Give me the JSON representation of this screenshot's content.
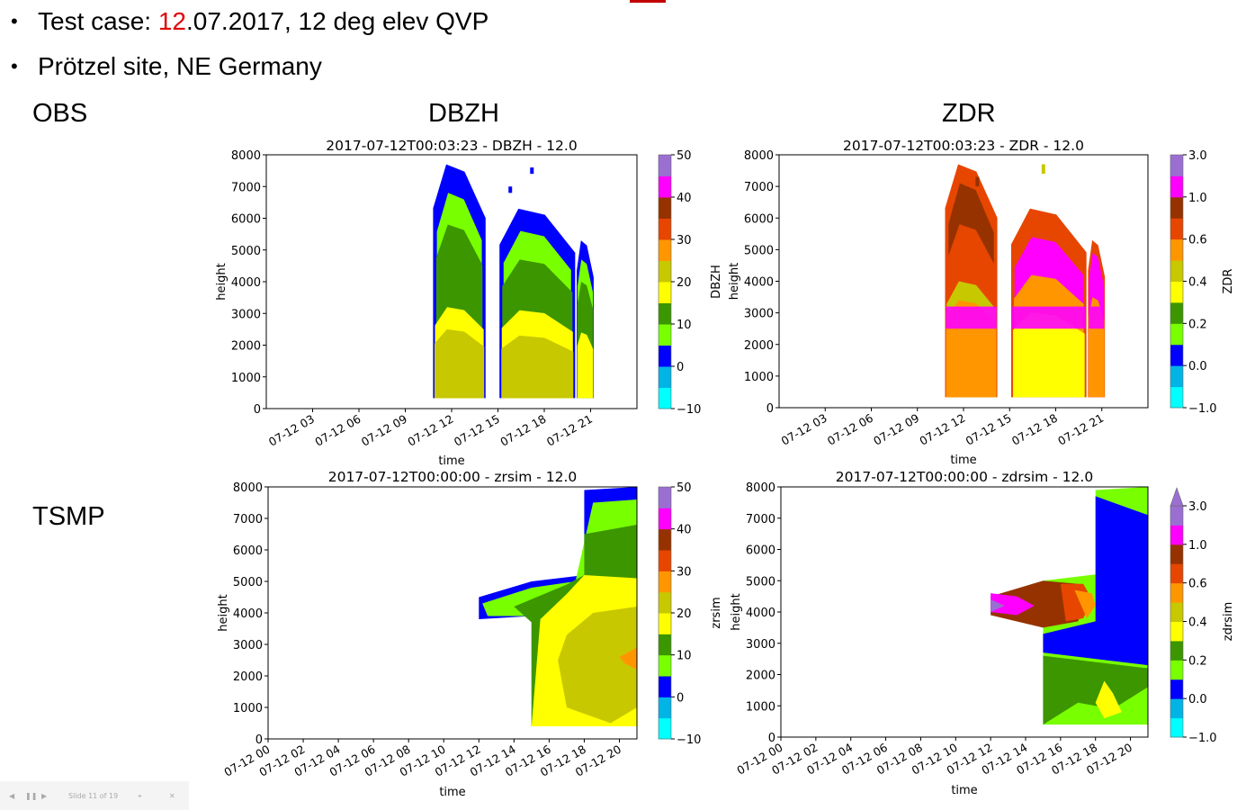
{
  "slide": {
    "bullet1": {
      "prefix": "Test case: ",
      "highlight": "12",
      "suffix": ".07.2017, 12 deg elev QVP"
    },
    "bullet2": "Prötzel site, NE Germany",
    "row_labels": {
      "obs": "OBS",
      "tsmp": "TSMP"
    },
    "col_labels": {
      "dbzh": "DBZH",
      "zdr": "ZDR"
    },
    "controls": {
      "prev": "◀",
      "pause": "❚❚",
      "next": "▶",
      "counter": "Slide 11 of 19",
      "focus": "⌖",
      "close": "✕"
    }
  },
  "colors": {
    "dbz_scale": [
      "#00ffff",
      "#00b4e6",
      "#0000ff",
      "#78ff00",
      "#3c9600",
      "#ffff00",
      "#c8c800",
      "#ff9600",
      "#e64600",
      "#963200",
      "#ff00ff",
      "#9b6fd2"
    ],
    "zdr_scale": [
      "#00ffff",
      "#00b4e6",
      "#0000ff",
      "#78ff00",
      "#3c9600",
      "#ffff00",
      "#c8c800",
      "#ff9600",
      "#e64600",
      "#963200",
      "#ff00ff",
      "#9b6fd2"
    ],
    "accent": "#e00000"
  },
  "chart_data": [
    {
      "type": "heatmap",
      "id": "obs-dbzh",
      "title": "2017-07-12T00:03:23 - DBZH  - 12.0",
      "xlabel": "time",
      "ylabel": "height",
      "colorbar_label": "DBZH",
      "ylim": [
        0,
        8000
      ],
      "xlim": [
        "07-12 00",
        "07-12 24"
      ],
      "yticks": [
        0,
        1000,
        2000,
        3000,
        4000,
        5000,
        6000,
        7000,
        8000
      ],
      "xticks": [
        "07-12 03",
        "07-12 06",
        "07-12 09",
        "07-12 12",
        "07-12 15",
        "07-12 18",
        "07-12 21"
      ],
      "colorbar_ticks": [
        -10,
        0,
        10,
        20,
        30,
        40,
        50
      ],
      "blobs": [
        {
          "x0": 10.8,
          "x1": 14.2,
          "top": 7700,
          "layers": [
            [
              0.3,
              7700,
              2
            ],
            [
              0.24,
              6800,
              3
            ],
            [
              0.2,
              5800,
              4
            ],
            [
              0.12,
              3200,
              5
            ],
            [
              0.09,
              2500,
              6
            ]
          ]
        },
        {
          "x0": 15.1,
          "x1": 20.0,
          "top": 6300,
          "layers": [
            [
              0.25,
              6300,
              2
            ],
            [
              0.18,
              5600,
              3
            ],
            [
              0.12,
              4700,
              4
            ],
            [
              0.1,
              3100,
              5
            ],
            [
              0.08,
              2300,
              6
            ]
          ]
        },
        {
          "x0": 20.1,
          "x1": 21.2,
          "top": 5300,
          "layers": [
            [
              0.2,
              5300,
              2
            ],
            [
              0.15,
              4700,
              3
            ],
            [
              0.12,
              4000,
              4
            ],
            [
              0.1,
              2400,
              5
            ]
          ]
        }
      ],
      "sparse": [
        [
          12.9,
          7100,
          7300,
          2
        ],
        [
          17.2,
          7400,
          7600,
          2
        ],
        [
          15.8,
          6800,
          7000,
          2
        ]
      ]
    },
    {
      "type": "heatmap",
      "id": "obs-zdr",
      "title": "2017-07-12T00:03:23 - ZDR  - 12.0",
      "xlabel": "time",
      "ylabel": "height",
      "colorbar_label": "ZDR",
      "ylim": [
        0,
        8000
      ],
      "xlim": [
        "07-12 00",
        "07-12 24"
      ],
      "yticks": [
        0,
        1000,
        2000,
        3000,
        4000,
        5000,
        6000,
        7000,
        8000
      ],
      "xticks": [
        "07-12 03",
        "07-12 06",
        "07-12 09",
        "07-12 12",
        "07-12 15",
        "07-12 18",
        "07-12 21"
      ],
      "colorbar_ticks": [
        "-1.0",
        "0.0",
        "0.2",
        "0.4",
        "0.6",
        "1.0",
        "3.0"
      ],
      "blobs": [
        {
          "x0": 10.8,
          "x1": 14.2,
          "top": 7700,
          "layers": [
            [
              0.28,
              7700,
              8
            ],
            [
              0.22,
              7100,
              9
            ],
            [
              0.18,
              5800,
              8
            ],
            [
              0.1,
              4000,
              6
            ],
            [
              0.06,
              3400,
              7
            ]
          ]
        },
        {
          "x0": 15.1,
          "x1": 20.0,
          "top": 6300,
          "layers": [
            [
              0.25,
              6300,
              8
            ],
            [
              0.15,
              5400,
              10
            ],
            [
              0.12,
              4200,
              7
            ],
            [
              0.08,
              3000,
              5
            ]
          ]
        },
        {
          "x0": 20.1,
          "x1": 21.2,
          "top": 5300,
          "layers": [
            [
              0.2,
              5300,
              8
            ],
            [
              0.15,
              4900,
              10
            ],
            [
              0.1,
              3500,
              7
            ]
          ]
        }
      ],
      "band": {
        "y0": 2500,
        "y1": 3200,
        "cat": 10
      },
      "sparse": [
        [
          12.9,
          7000,
          7300,
          9
        ],
        [
          17.2,
          7400,
          7700,
          6
        ]
      ]
    },
    {
      "type": "heatmap",
      "id": "tsmp-zrsim",
      "title": "2017-07-12T00:00:00 - zrsim  - 12.0",
      "xlabel": "time",
      "ylabel": "height",
      "colorbar_label": "zrsim",
      "ylim": [
        0,
        8000
      ],
      "xlim": [
        "07-12 00",
        "07-12 21"
      ],
      "yticks": [
        0,
        1000,
        2000,
        3000,
        4000,
        5000,
        6000,
        7000,
        8000
      ],
      "xticks": [
        "07-12 00",
        "07-12 02",
        "07-12 04",
        "07-12 06",
        "07-12 08",
        "07-12 10",
        "07-12 12",
        "07-12 14",
        "07-12 16",
        "07-12 18",
        "07-12 20"
      ],
      "colorbar_ticks": [
        -10,
        0,
        10,
        20,
        30,
        40,
        50
      ],
      "polygons": [
        {
          "cat": 2,
          "pts": [
            [
              12,
              4500
            ],
            [
              15,
              5000
            ],
            [
              18,
              5200
            ],
            [
              18,
              7900
            ],
            [
              21,
              8000
            ],
            [
              21,
              400
            ],
            [
              15,
              400
            ],
            [
              15,
              3900
            ],
            [
              12,
              3800
            ]
          ]
        },
        {
          "cat": 3,
          "pts": [
            [
              12.2,
              4300
            ],
            [
              15,
              4800
            ],
            [
              17.5,
              5000
            ],
            [
              18.5,
              7500
            ],
            [
              21,
              7600
            ],
            [
              21,
              400
            ],
            [
              15,
              400
            ],
            [
              15,
              3900
            ],
            [
              12.5,
              3900
            ]
          ]
        },
        {
          "cat": 4,
          "pts": [
            [
              14,
              4200
            ],
            [
              17,
              4900
            ],
            [
              18,
              5200
            ],
            [
              18,
              6500
            ],
            [
              21,
              6800
            ],
            [
              21,
              400
            ],
            [
              15,
              400
            ],
            [
              15,
              3700
            ]
          ]
        },
        {
          "cat": 5,
          "pts": [
            [
              15.5,
              3800
            ],
            [
              17,
              4600
            ],
            [
              18,
              5200
            ],
            [
              21,
              5100
            ],
            [
              21,
              400
            ],
            [
              15,
              400
            ]
          ]
        },
        {
          "cat": 6,
          "pts": [
            [
              17,
              3300
            ],
            [
              18.5,
              4000
            ],
            [
              21,
              4200
            ],
            [
              21,
              1000
            ],
            [
              19.5,
              500
            ],
            [
              17,
              1000
            ],
            [
              16.5,
              2500
            ]
          ]
        },
        {
          "cat": 7,
          "pts": [
            [
              20,
              2600
            ],
            [
              21,
              2900
            ],
            [
              21,
              2200
            ],
            [
              20.3,
              2400
            ]
          ]
        }
      ]
    },
    {
      "type": "heatmap",
      "id": "tsmp-zdrsim",
      "title": "2017-07-12T00:00:00 - zdrsim  - 12.0",
      "xlabel": "time",
      "ylabel": "height",
      "colorbar_label": "zdrsim",
      "ylim": [
        0,
        8000
      ],
      "xlim": [
        "07-12 00",
        "07-12 21"
      ],
      "yticks": [
        0,
        1000,
        2000,
        3000,
        4000,
        5000,
        6000,
        7000,
        8000
      ],
      "xticks": [
        "07-12 00",
        "07-12 02",
        "07-12 04",
        "07-12 06",
        "07-12 08",
        "07-12 10",
        "07-12 12",
        "07-12 14",
        "07-12 16",
        "07-12 18",
        "07-12 20"
      ],
      "colorbar_ticks": [
        "-1.0",
        "0.0",
        "0.2",
        "0.4",
        "0.6",
        "1.0",
        "3.0"
      ],
      "polygons": [
        {
          "cat": 3,
          "pts": [
            [
              15,
              5000
            ],
            [
              18,
              5200
            ],
            [
              18,
              7900
            ],
            [
              21,
              8000
            ],
            [
              21,
              400
            ],
            [
              15,
              400
            ]
          ]
        },
        {
          "cat": 2,
          "pts": [
            [
              15,
              3300
            ],
            [
              18,
              3700
            ],
            [
              18,
              5200
            ],
            [
              18,
              7700
            ],
            [
              21,
              7100
            ],
            [
              21,
              2300
            ],
            [
              18,
              2500
            ],
            [
              15,
              2700
            ]
          ]
        },
        {
          "cat": 4,
          "pts": [
            [
              15,
              2600
            ],
            [
              18,
              2400
            ],
            [
              21,
              2200
            ],
            [
              21,
              1600
            ],
            [
              19,
              900
            ],
            [
              17,
              1100
            ],
            [
              15,
              400
            ]
          ]
        },
        {
          "cat": 5,
          "pts": [
            [
              18.5,
              1800
            ],
            [
              19,
              1400
            ],
            [
              19.5,
              800
            ],
            [
              18.5,
              600
            ],
            [
              18,
              1100
            ]
          ]
        },
        {
          "cat": 9,
          "pts": [
            [
              12,
              4500
            ],
            [
              15,
              5000
            ],
            [
              17,
              4900
            ],
            [
              17.5,
              4400
            ],
            [
              17,
              3700
            ],
            [
              15,
              3500
            ],
            [
              12,
              3900
            ]
          ]
        },
        {
          "cat": 8,
          "pts": [
            [
              16,
              4900
            ],
            [
              17.3,
              4900
            ],
            [
              17.8,
              4400
            ],
            [
              17.3,
              3800
            ],
            [
              16.3,
              3700
            ]
          ]
        },
        {
          "cat": 7,
          "pts": [
            [
              16.8,
              4700
            ],
            [
              17.8,
              4600
            ],
            [
              18,
              4200
            ],
            [
              17.5,
              3800
            ]
          ]
        },
        {
          "cat": 10,
          "pts": [
            [
              12,
              4600
            ],
            [
              13.5,
              4500
            ],
            [
              14.5,
              4200
            ],
            [
              13.5,
              3900
            ],
            [
              12,
              4000
            ]
          ]
        },
        {
          "cat": 11,
          "pts": [
            [
              12,
              4400
            ],
            [
              12.8,
              4200
            ],
            [
              12,
              4000
            ]
          ]
        }
      ]
    }
  ]
}
